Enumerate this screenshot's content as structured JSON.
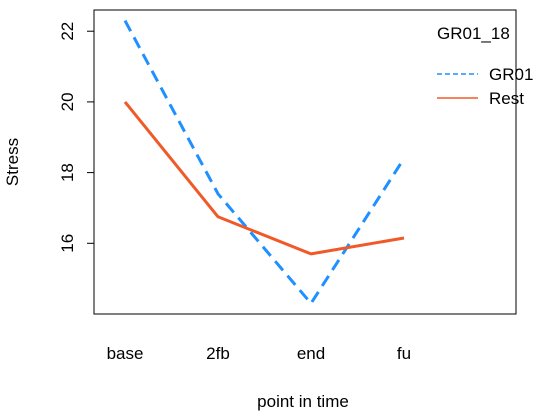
{
  "chart_data": {
    "type": "line",
    "categories": [
      "base",
      "2fb",
      "end",
      "fu"
    ],
    "xlabel": "point in time",
    "ylabel": "Stress",
    "ylim": [
      14.0,
      22.6
    ],
    "yticks": [
      16,
      18,
      20,
      22
    ],
    "legend": {
      "title": "GR01_18",
      "placement": "top-right"
    },
    "series": [
      {
        "name": "GR01",
        "values": [
          22.3,
          17.4,
          14.3,
          18.4
        ],
        "color": "#1e90ff",
        "line": "dashed"
      },
      {
        "name": "Rest",
        "values": [
          20.0,
          16.75,
          15.7,
          16.15
        ],
        "color": "#f05a28",
        "line": "solid"
      }
    ]
  }
}
